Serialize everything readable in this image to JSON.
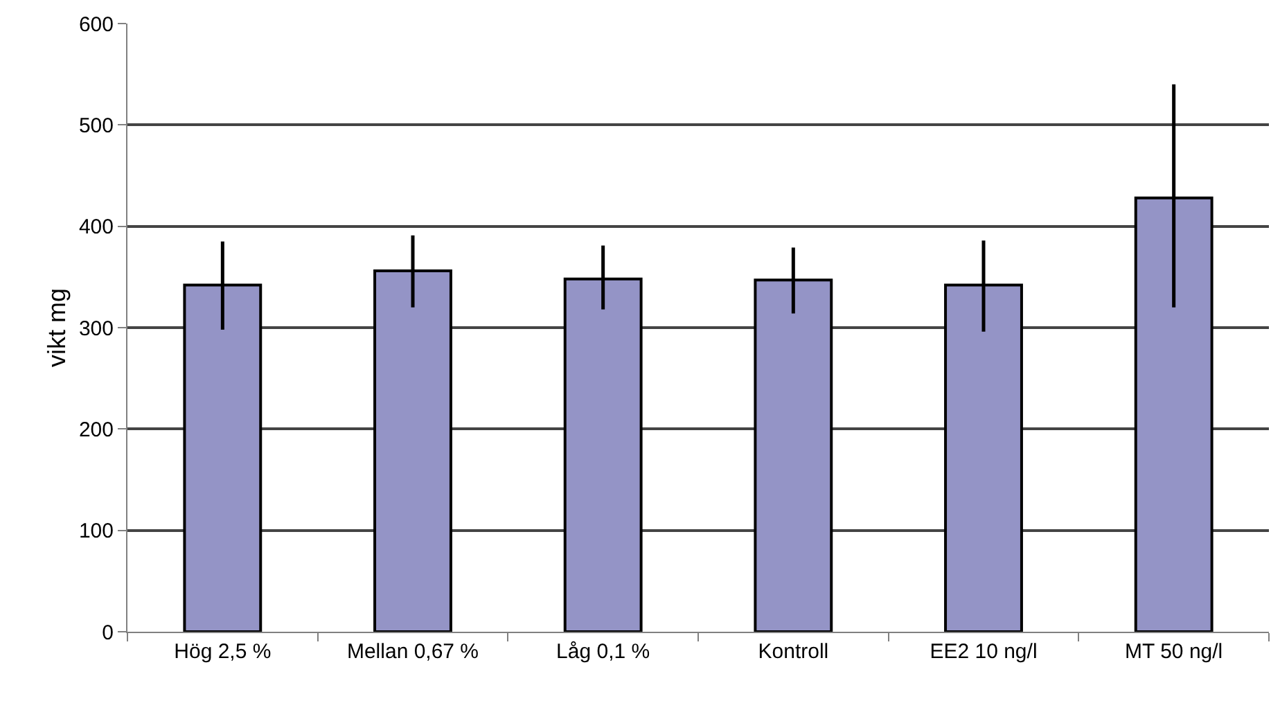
{
  "chart_data": {
    "type": "bar",
    "ylabel": "vikt mg",
    "categories": [
      "Hög 2,5 %",
      "Mellan 0,67 %",
      "Låg 0,1 %",
      "Kontroll",
      "EE2 10 ng/l",
      "MT 50 ng/l"
    ],
    "values": [
      342,
      356,
      348,
      347,
      342,
      428
    ],
    "errors": [
      [
        298,
        385
      ],
      [
        320,
        391
      ],
      [
        318,
        381
      ],
      [
        314,
        379
      ],
      [
        296,
        386
      ],
      [
        320,
        540
      ]
    ],
    "color": "#9494c6",
    "ylim": [
      0,
      600
    ],
    "yticks": [
      0,
      100,
      200,
      300,
      400,
      500,
      600
    ],
    "grid": "y",
    "legend": false
  }
}
